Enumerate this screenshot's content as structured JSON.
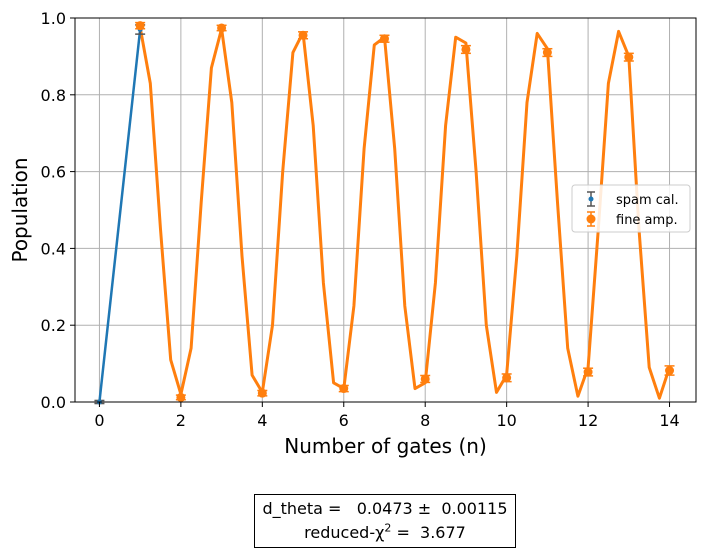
{
  "chart_data": {
    "type": "scatter",
    "xlabel": "Number of gates (n)",
    "ylabel": "Population",
    "xlim": [
      -0.6,
      14.65
    ],
    "ylim": [
      0.0,
      1.0
    ],
    "xticks": [
      "0",
      "2",
      "4",
      "6",
      "8",
      "10",
      "12",
      "14"
    ],
    "yticks": [
      "0.0",
      "0.2",
      "0.4",
      "0.6",
      "0.8",
      "1.0"
    ],
    "grid": true,
    "legend_position": "right",
    "colors": {
      "spam": "#1f77b4",
      "fine": "#ff7f0e",
      "grid": "#b0b0b0"
    },
    "series": [
      {
        "name": "spam cal.",
        "kind": "errorbar-line",
        "x": [
          0,
          1
        ],
        "y": [
          0.0,
          0.97
        ],
        "yerr": [
          0.004,
          0.012
        ]
      },
      {
        "name": "fine amp.",
        "kind": "errorbar",
        "x": [
          1,
          2,
          3,
          4,
          5,
          6,
          7,
          8,
          9,
          10,
          11,
          12,
          13,
          14
        ],
        "y": [
          0.98,
          0.012,
          0.974,
          0.023,
          0.955,
          0.035,
          0.946,
          0.06,
          0.918,
          0.063,
          0.91,
          0.078,
          0.898,
          0.082
        ],
        "yerr": [
          0.008,
          0.006,
          0.007,
          0.007,
          0.009,
          0.008,
          0.009,
          0.009,
          0.01,
          0.01,
          0.01,
          0.01,
          0.01,
          0.012
        ]
      },
      {
        "name": "fit",
        "kind": "curve",
        "x": [
          1,
          1.25,
          1.5,
          1.75,
          2,
          2.25,
          2.5,
          2.75,
          3,
          3.25,
          3.5,
          3.75,
          4,
          4.25,
          4.5,
          4.75,
          5,
          5.25,
          5.5,
          5.75,
          6,
          6.25,
          6.5,
          6.75,
          7,
          7.25,
          7.5,
          7.75,
          8,
          8.25,
          8.5,
          8.75,
          9,
          9.25,
          9.5,
          9.75,
          10,
          10.25,
          10.5,
          10.75,
          11,
          11.25,
          11.5,
          11.75,
          12,
          12.25,
          12.5,
          12.75,
          13,
          13.25,
          13.5,
          13.75,
          14
        ],
        "y": [
          0.975,
          0.83,
          0.45,
          0.11,
          0.02,
          0.14,
          0.52,
          0.87,
          0.972,
          0.78,
          0.38,
          0.07,
          0.025,
          0.2,
          0.6,
          0.91,
          0.962,
          0.72,
          0.31,
          0.05,
          0.035,
          0.25,
          0.66,
          0.93,
          0.95,
          0.66,
          0.25,
          0.035,
          0.05,
          0.31,
          0.72,
          0.95,
          0.935,
          0.6,
          0.2,
          0.025,
          0.07,
          0.38,
          0.78,
          0.96,
          0.92,
          0.52,
          0.14,
          0.015,
          0.09,
          0.45,
          0.83,
          0.965,
          0.9,
          0.45,
          0.09,
          0.01,
          0.09
        ]
      }
    ]
  },
  "fit_box": {
    "line1": "d_theta =   0.0473 ±  0.00115",
    "line2_prefix": "reduced-χ",
    "line2_sup": "2",
    "line2_suffix": " =  3.677"
  }
}
